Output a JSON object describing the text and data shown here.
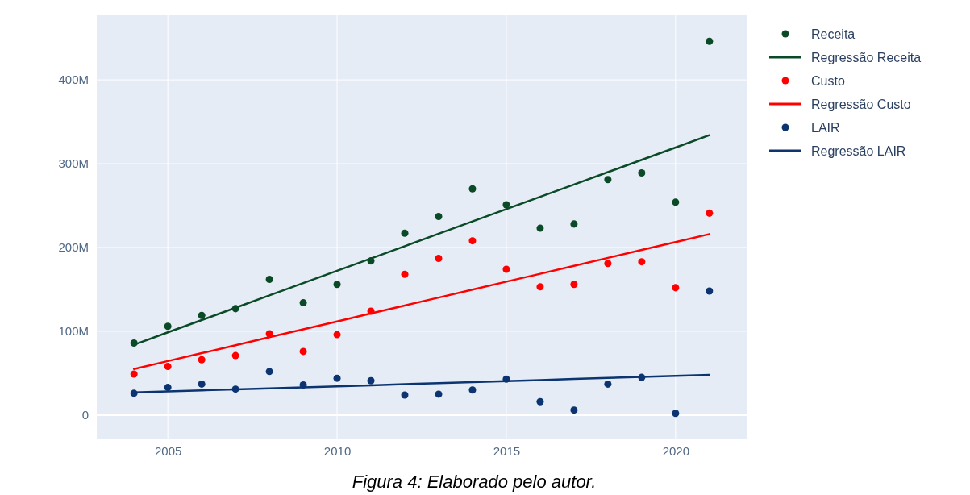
{
  "chart_data": {
    "type": "scatter",
    "x": [
      2004,
      2005,
      2006,
      2007,
      2008,
      2009,
      2010,
      2011,
      2012,
      2013,
      2014,
      2015,
      2016,
      2017,
      2018,
      2019,
      2020,
      2021
    ],
    "series": [
      {
        "name": "Receita",
        "color": "#0b4a26",
        "values": [
          86,
          106,
          119,
          127,
          162,
          134,
          156,
          184,
          217,
          237,
          270,
          251,
          223,
          228,
          281,
          289,
          254,
          446
        ]
      },
      {
        "name": "Regressão Receita",
        "type": "line",
        "marker": "none",
        "color": "#0b4a26",
        "values": [
          84,
          98.7,
          113.4,
          128.1,
          142.8,
          157.5,
          172.2,
          186.9,
          201.6,
          216.4,
          231.1,
          245.8,
          260.5,
          275.2,
          289.9,
          304.6,
          319.3,
          334
        ]
      },
      {
        "name": "Custo",
        "color": "#ff0000",
        "values": [
          49,
          58,
          66,
          71,
          97,
          76,
          96,
          124,
          168,
          187,
          208,
          174,
          153,
          156,
          181,
          183,
          152,
          241
        ]
      },
      {
        "name": "Regressão Custo",
        "type": "line",
        "marker": "none",
        "color": "#ff0000",
        "values": [
          55,
          64.5,
          73.9,
          83.4,
          92.9,
          102.4,
          111.8,
          121.3,
          130.8,
          140.2,
          149.7,
          159.2,
          168.6,
          178.1,
          187.6,
          197.1,
          206.5,
          216
        ]
      },
      {
        "name": "LAIR",
        "color": "#0b3470",
        "values": [
          26,
          33,
          37,
          31,
          52,
          36,
          44,
          41,
          24,
          25,
          30,
          43,
          16,
          6,
          37,
          45,
          2,
          148
        ]
      },
      {
        "name": "Regressão LAIR",
        "type": "line",
        "marker": "none",
        "color": "#0b3470",
        "values": [
          27,
          28.2,
          29.5,
          30.7,
          31.9,
          33.2,
          34.4,
          35.6,
          36.9,
          38.1,
          39.4,
          40.6,
          41.8,
          43.1,
          44.3,
          45.5,
          46.8,
          48
        ]
      }
    ],
    "xlim": [
      2002.9,
      2022.1
    ],
    "xticks": [
      2005,
      2010,
      2015,
      2020
    ],
    "ylim": [
      -28,
      478
    ],
    "yticks": [
      0,
      {
        "value": 100,
        "label": "100M"
      },
      {
        "value": 200,
        "label": "200M"
      },
      {
        "value": 300,
        "label": "300M"
      },
      {
        "value": 400,
        "label": "400M"
      }
    ],
    "grid": true,
    "legend": "top right",
    "marker": "circle",
    "annotations": [
      "Figura 4: Elaborado pelo autor."
    ]
  }
}
